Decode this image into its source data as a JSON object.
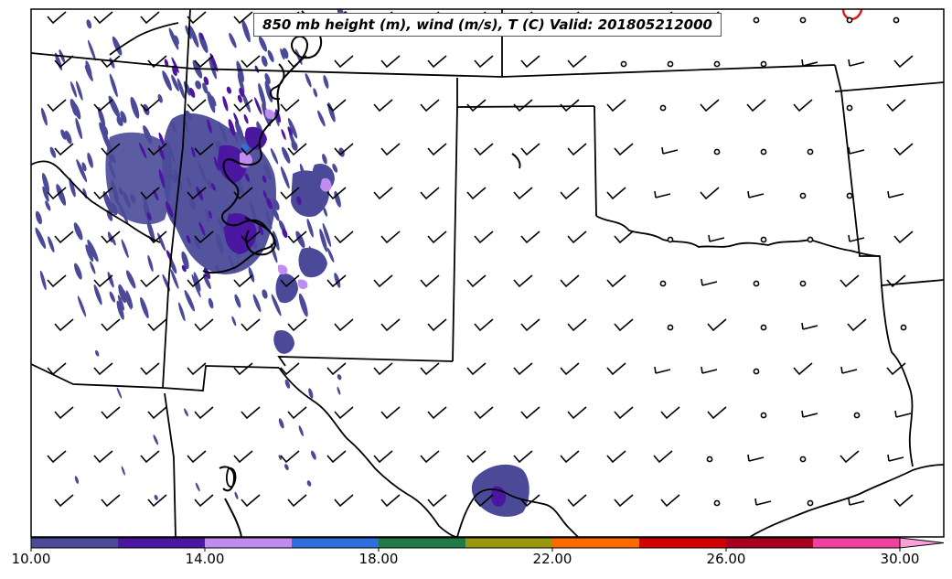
{
  "title": "850 mb height (m), wind (m/s), T (C) Valid: 201805212000",
  "colorbar": {
    "bins": [
      {
        "from": 10,
        "to": 12,
        "color": "#4a4a99"
      },
      {
        "from": 12,
        "to": 14,
        "color": "#4b16a0"
      },
      {
        "from": 14,
        "to": 16,
        "color": "#c08cf0"
      },
      {
        "from": 16,
        "to": 18,
        "color": "#2e6fdc"
      },
      {
        "from": 18,
        "to": 20,
        "color": "#1f7a45"
      },
      {
        "from": 20,
        "to": 22,
        "color": "#999910"
      },
      {
        "from": 22,
        "to": 24,
        "color": "#ff6a00"
      },
      {
        "from": 24,
        "to": 26,
        "color": "#d20000"
      },
      {
        "from": 26,
        "to": 28,
        "color": "#a8001e"
      },
      {
        "from": 28,
        "to": 30,
        "color": "#f040a0"
      }
    ],
    "extend_color": "#ff9ed8",
    "tick_labels": [
      "10.00",
      "14.00",
      "18.00",
      "22.00",
      "26.00",
      "30.00"
    ]
  },
  "map": {
    "height_contour_color": "#000000",
    "temperature_contour_color": "#e8141e",
    "boundary_color": "#000000"
  }
}
